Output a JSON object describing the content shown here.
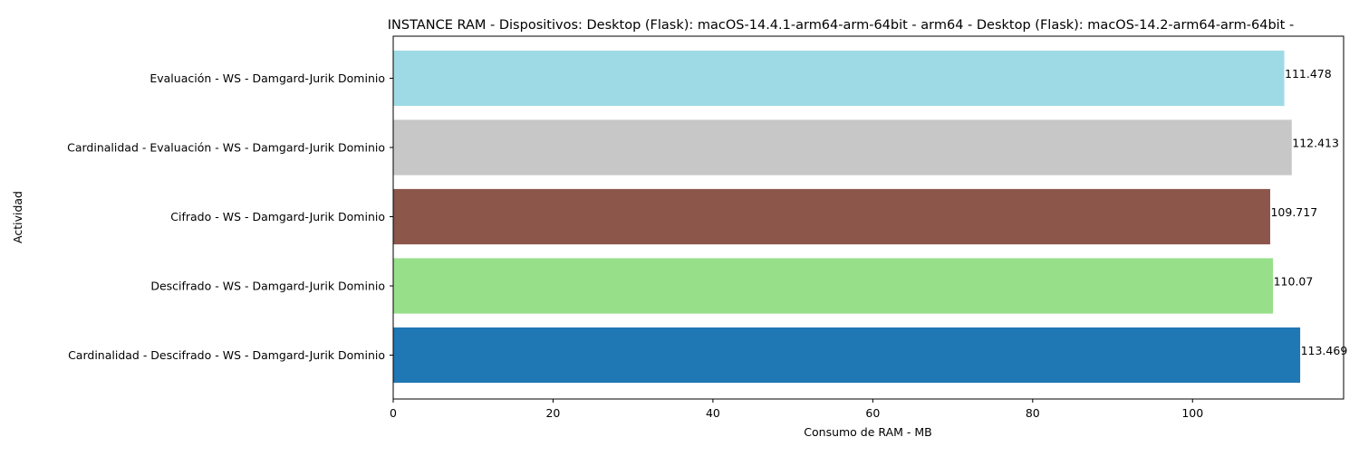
{
  "chart_data": {
    "type": "bar",
    "orientation": "horizontal",
    "title": "INSTANCE RAM - Dispositivos: Desktop (Flask): macOS-14.4.1-arm64-arm-64bit - arm64 - Desktop (Flask): macOS-14.2-arm64-arm-64bit -",
    "xlabel": "Consumo de RAM - MB",
    "ylabel": "Actividad",
    "xlim": [
      0,
      118.9
    ],
    "x_ticks": [
      0,
      20,
      40,
      60,
      80,
      100
    ],
    "grid": false,
    "legend": "none",
    "categories": [
      "Evaluación - WS - Damgard-Jurik Dominio",
      "Cardinalidad - Evaluación - WS - Damgard-Jurik Dominio",
      "Cifrado - WS - Damgard-Jurik Dominio",
      "Descifrado - WS - Damgard-Jurik Dominio",
      "Cardinalidad - Descifrado - WS - Damgard-Jurik Dominio"
    ],
    "values": [
      111.478,
      112.413,
      109.717,
      110.07,
      113.469
    ],
    "value_labels": [
      "111.478",
      "112.413",
      "109.717",
      "110.07",
      "113.469"
    ],
    "colors": [
      "#9edae5",
      "#c7c7c7",
      "#8c564b",
      "#98df8a",
      "#1f77b4"
    ]
  }
}
